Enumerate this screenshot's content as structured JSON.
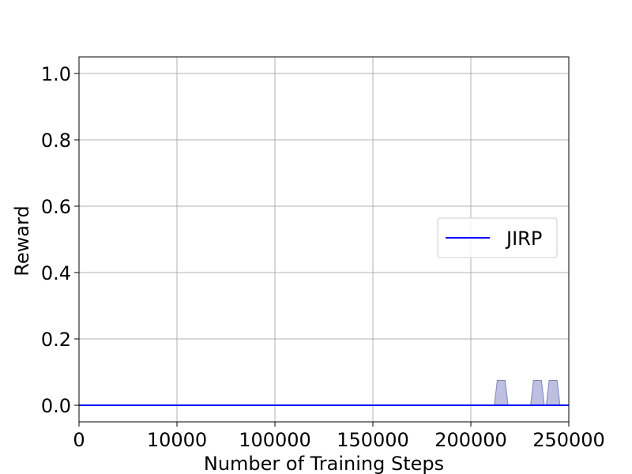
{
  "chart_data": {
    "type": "line",
    "title": "",
    "xlabel": "Number of Training Steps",
    "ylabel": "Reward",
    "x_ticks": [
      "0",
      "10000",
      "100000",
      "150000",
      "200000",
      "250000"
    ],
    "y_ticks": [
      "0.0",
      "0.2",
      "0.4",
      "0.6",
      "0.8",
      "1.0"
    ],
    "xlim": [
      0,
      250000
    ],
    "ylim": [
      -0.05,
      1.05
    ],
    "grid": true,
    "legend_position": "center-right",
    "series": [
      {
        "name": "JIRP",
        "color": "#0000ff",
        "x": [
          0,
          250000
        ],
        "y": [
          0.0,
          0.0
        ],
        "band": {
          "color": "#7b82c4",
          "x": [
            0,
            212000,
            213500,
            217500,
            219000,
            230500,
            232000,
            236000,
            237500,
            238500,
            240000,
            244000,
            245500,
            250000
          ],
          "lower": [
            0,
            0,
            0,
            0,
            0,
            0,
            0,
            0,
            0,
            0,
            0,
            0,
            0,
            0
          ],
          "upper": [
            0,
            0,
            0.075,
            0.075,
            0,
            0,
            0.075,
            0.075,
            0,
            0,
            0.075,
            0.075,
            0,
            0
          ]
        }
      }
    ]
  }
}
